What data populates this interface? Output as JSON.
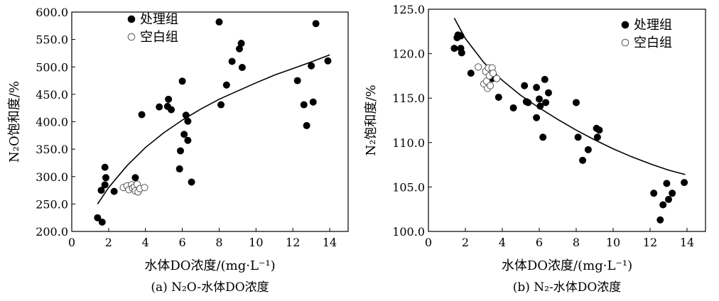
{
  "chart_data": [
    {
      "type": "scatter",
      "panel_caption": "(a) N₂O-水体DO浓度",
      "xlabel": "水体DO浓度/(mg·L⁻¹)",
      "ylabel": "N₂O饱和度/%",
      "xlim": [
        0,
        15
      ],
      "ylim": [
        200,
        600
      ],
      "xticks": [
        "0",
        "2",
        "4",
        "6",
        "8",
        "10",
        "12",
        "14"
      ],
      "yticks": [
        "200.0",
        "250.0",
        "300.0",
        "350.0",
        "400.0",
        "450.0",
        "500.0",
        "550.0",
        "600.0"
      ],
      "grid": false,
      "legend_position": "top-left",
      "series": [
        {
          "name": "处理组",
          "marker": "filled-circle",
          "points": [
            [
              1.4,
              225
            ],
            [
              1.65,
              217
            ],
            [
              1.6,
              275
            ],
            [
              1.8,
              285
            ],
            [
              1.8,
              317
            ],
            [
              1.85,
              298
            ],
            [
              2.3,
              273
            ],
            [
              3.45,
              298
            ],
            [
              3.8,
              413
            ],
            [
              4.75,
              427
            ],
            [
              5.2,
              428
            ],
            [
              5.25,
              441
            ],
            [
              5.4,
              422
            ],
            [
              5.85,
              314
            ],
            [
              5.9,
              347
            ],
            [
              6.0,
              474
            ],
            [
              6.1,
              377
            ],
            [
              6.2,
              412
            ],
            [
              6.3,
              401
            ],
            [
              6.3,
              366
            ],
            [
              6.5,
              290
            ],
            [
              8.0,
              582
            ],
            [
              8.1,
              431
            ],
            [
              8.4,
              467
            ],
            [
              8.7,
              510
            ],
            [
              9.1,
              533
            ],
            [
              9.2,
              543
            ],
            [
              9.25,
              499
            ],
            [
              12.25,
              475
            ],
            [
              12.6,
              431
            ],
            [
              12.75,
              393
            ],
            [
              13.0,
              502
            ],
            [
              13.1,
              436
            ],
            [
              13.25,
              579
            ],
            [
              13.9,
              511
            ]
          ]
        },
        {
          "name": "空白组",
          "marker": "open-circle",
          "points": [
            [
              2.8,
              280
            ],
            [
              3.0,
              283
            ],
            [
              3.1,
              276
            ],
            [
              3.25,
              285
            ],
            [
              3.3,
              279
            ],
            [
              3.4,
              281
            ],
            [
              3.45,
              274
            ],
            [
              3.55,
              286
            ],
            [
              3.6,
              272
            ],
            [
              3.7,
              278
            ],
            [
              3.95,
              280
            ]
          ]
        }
      ],
      "fit_curve": {
        "points": [
          [
            1.4,
            250
          ],
          [
            2,
            280
          ],
          [
            3,
            320
          ],
          [
            4,
            353
          ],
          [
            5,
            380
          ],
          [
            6,
            403
          ],
          [
            7,
            423
          ],
          [
            8,
            441
          ],
          [
            9,
            456
          ],
          [
            10,
            471
          ],
          [
            11,
            485
          ],
          [
            12,
            497
          ],
          [
            13,
            509
          ],
          [
            14,
            522
          ]
        ]
      }
    },
    {
      "type": "scatter",
      "panel_caption": "(b) N₂-水体DO浓度",
      "xlabel": "水体DO浓度/(mg·L⁻¹)",
      "ylabel": "N₂饱和度/%",
      "xlim": [
        0,
        15
      ],
      "ylim": [
        100,
        125
      ],
      "xticks": [
        "0",
        "2",
        "4",
        "6",
        "8",
        "10",
        "12",
        "14"
      ],
      "yticks": [
        "100.0",
        "105.0",
        "110.0",
        "115.0",
        "120.0",
        "125.0"
      ],
      "grid": false,
      "legend_position": "top-right",
      "series": [
        {
          "name": "处理组",
          "marker": "filled-circle",
          "points": [
            [
              1.4,
              120.6
            ],
            [
              1.55,
              121.8
            ],
            [
              1.6,
              122.1
            ],
            [
              1.75,
              122.0
            ],
            [
              1.75,
              120.6
            ],
            [
              1.8,
              120.1
            ],
            [
              2.3,
              117.8
            ],
            [
              3.45,
              117.2
            ],
            [
              3.8,
              115.1
            ],
            [
              4.6,
              113.9
            ],
            [
              5.2,
              116.4
            ],
            [
              5.3,
              114.6
            ],
            [
              5.4,
              114.5
            ],
            [
              5.85,
              116.2
            ],
            [
              5.85,
              112.8
            ],
            [
              6.0,
              114.9
            ],
            [
              6.05,
              114.1
            ],
            [
              6.2,
              110.6
            ],
            [
              6.3,
              117.1
            ],
            [
              6.35,
              114.5
            ],
            [
              6.5,
              115.6
            ],
            [
              8.0,
              114.5
            ],
            [
              8.1,
              110.6
            ],
            [
              8.35,
              108.0
            ],
            [
              8.65,
              109.2
            ],
            [
              9.1,
              111.6
            ],
            [
              9.15,
              110.6
            ],
            [
              9.25,
              111.4
            ],
            [
              12.2,
              104.3
            ],
            [
              12.55,
              101.3
            ],
            [
              12.7,
              103.0
            ],
            [
              12.9,
              105.4
            ],
            [
              13.0,
              103.6
            ],
            [
              13.2,
              104.3
            ],
            [
              13.85,
              105.5
            ]
          ]
        },
        {
          "name": "空白组",
          "marker": "open-circle",
          "points": [
            [
              2.7,
              118.5
            ],
            [
              3.0,
              116.6
            ],
            [
              3.1,
              118.0
            ],
            [
              3.15,
              116.9
            ],
            [
              3.2,
              116.1
            ],
            [
              3.25,
              118.4
            ],
            [
              3.3,
              117.5
            ],
            [
              3.35,
              116.4
            ],
            [
              3.45,
              118.4
            ],
            [
              3.5,
              117.8
            ],
            [
              3.7,
              117.2
            ]
          ]
        }
      ],
      "fit_curve": {
        "points": [
          [
            1.4,
            124.0
          ],
          [
            2,
            121.7
          ],
          [
            3,
            119.0
          ],
          [
            4,
            117.0
          ],
          [
            5,
            115.3
          ],
          [
            6,
            113.9
          ],
          [
            7,
            112.6
          ],
          [
            8,
            111.4
          ],
          [
            9,
            110.3
          ],
          [
            10,
            109.3
          ],
          [
            11,
            108.4
          ],
          [
            12,
            107.6
          ],
          [
            13,
            106.9
          ],
          [
            13.9,
            106.4
          ]
        ]
      }
    }
  ]
}
